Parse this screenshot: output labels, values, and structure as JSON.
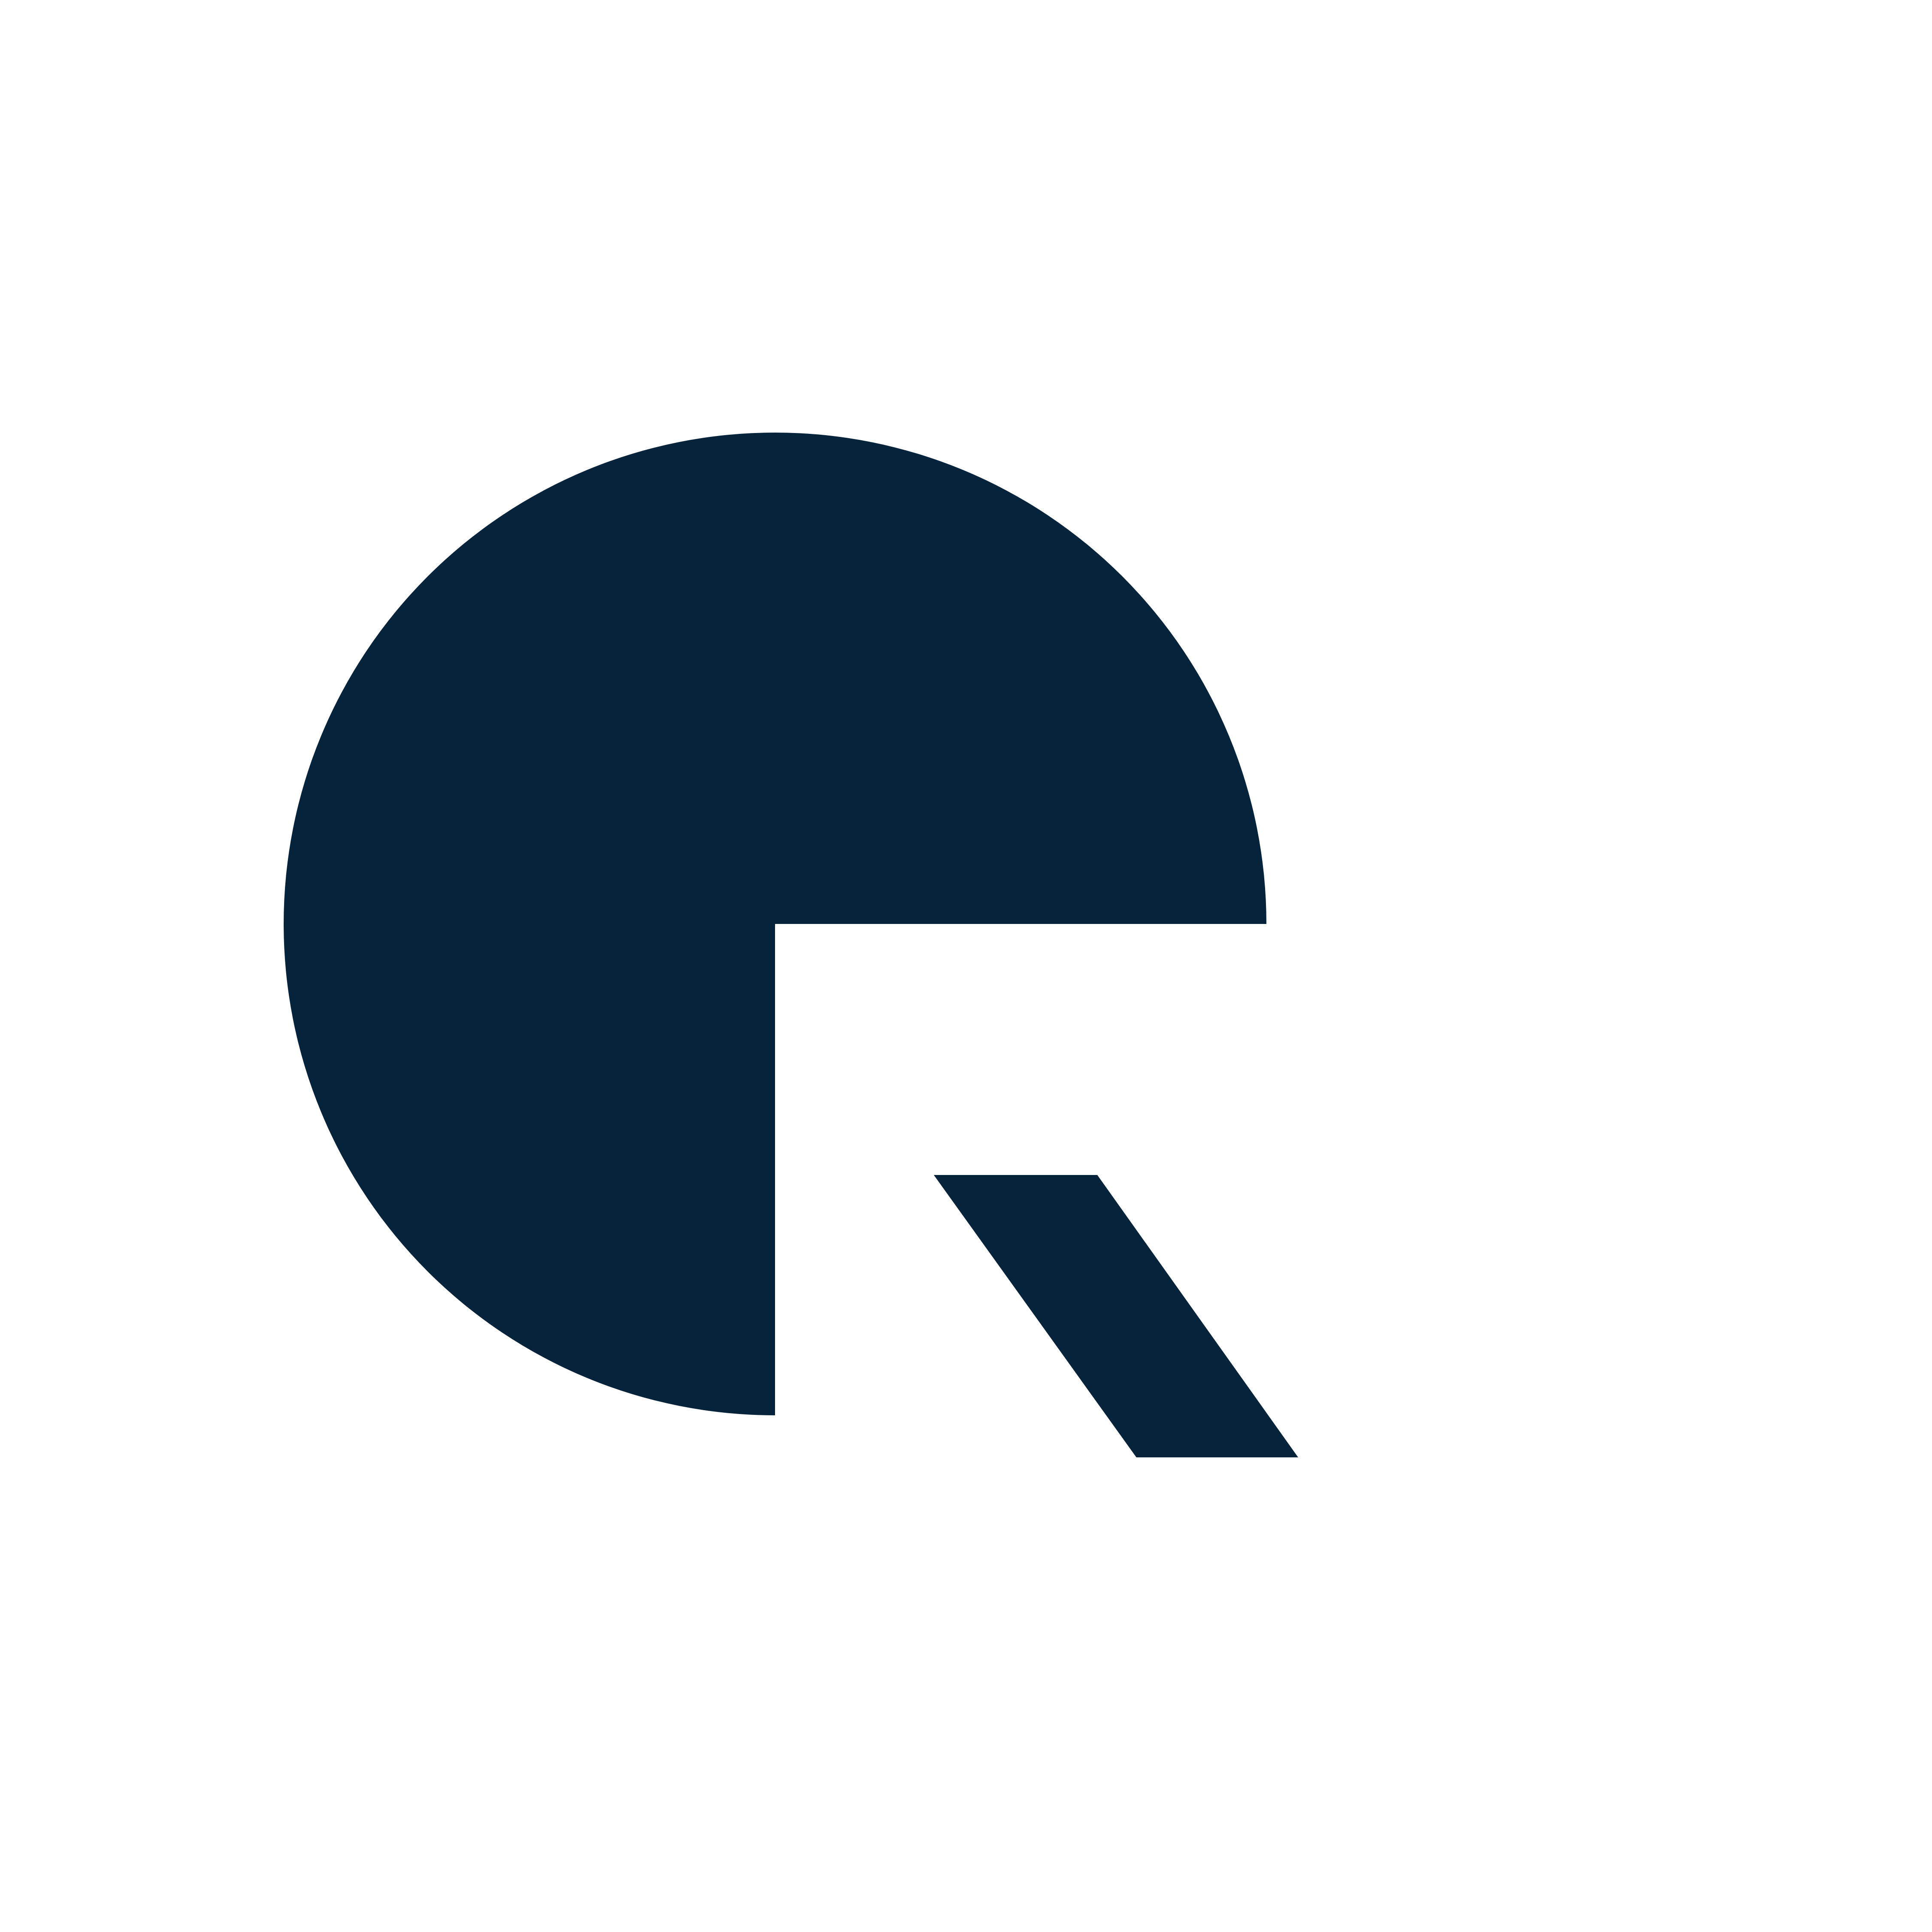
{
  "logo": {
    "icon": "abstract-q-logo-icon",
    "fill_color": "#06233c",
    "background_color": "#ffffff"
  }
}
